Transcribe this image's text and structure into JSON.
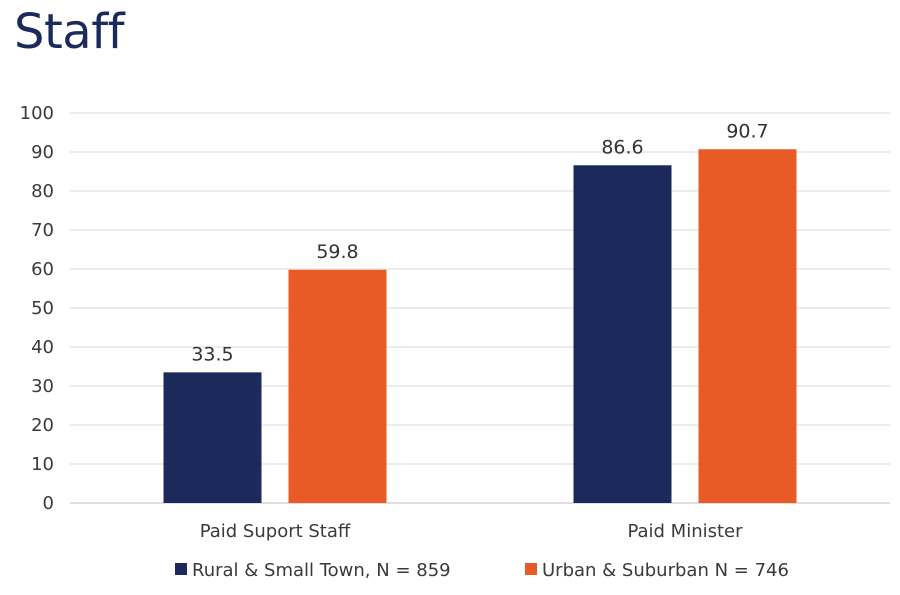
{
  "title": "Staff",
  "chart_data": {
    "type": "bar",
    "categories": [
      "Paid Suport Staff",
      "Paid Minister"
    ],
    "series": [
      {
        "name": "Rural & Small Town, N = 859",
        "color": "#1b2a5a",
        "values": [
          33.5,
          86.6
        ]
      },
      {
        "name": "Urban & Suburban N = 746",
        "color": "#e85a26",
        "values": [
          59.8,
          90.7
        ]
      }
    ],
    "ylim": [
      0,
      100
    ],
    "yticks": [
      0,
      10,
      20,
      30,
      40,
      50,
      60,
      70,
      80,
      90,
      100
    ],
    "grid": true,
    "legend_position": "bottom",
    "data_labels": true
  }
}
